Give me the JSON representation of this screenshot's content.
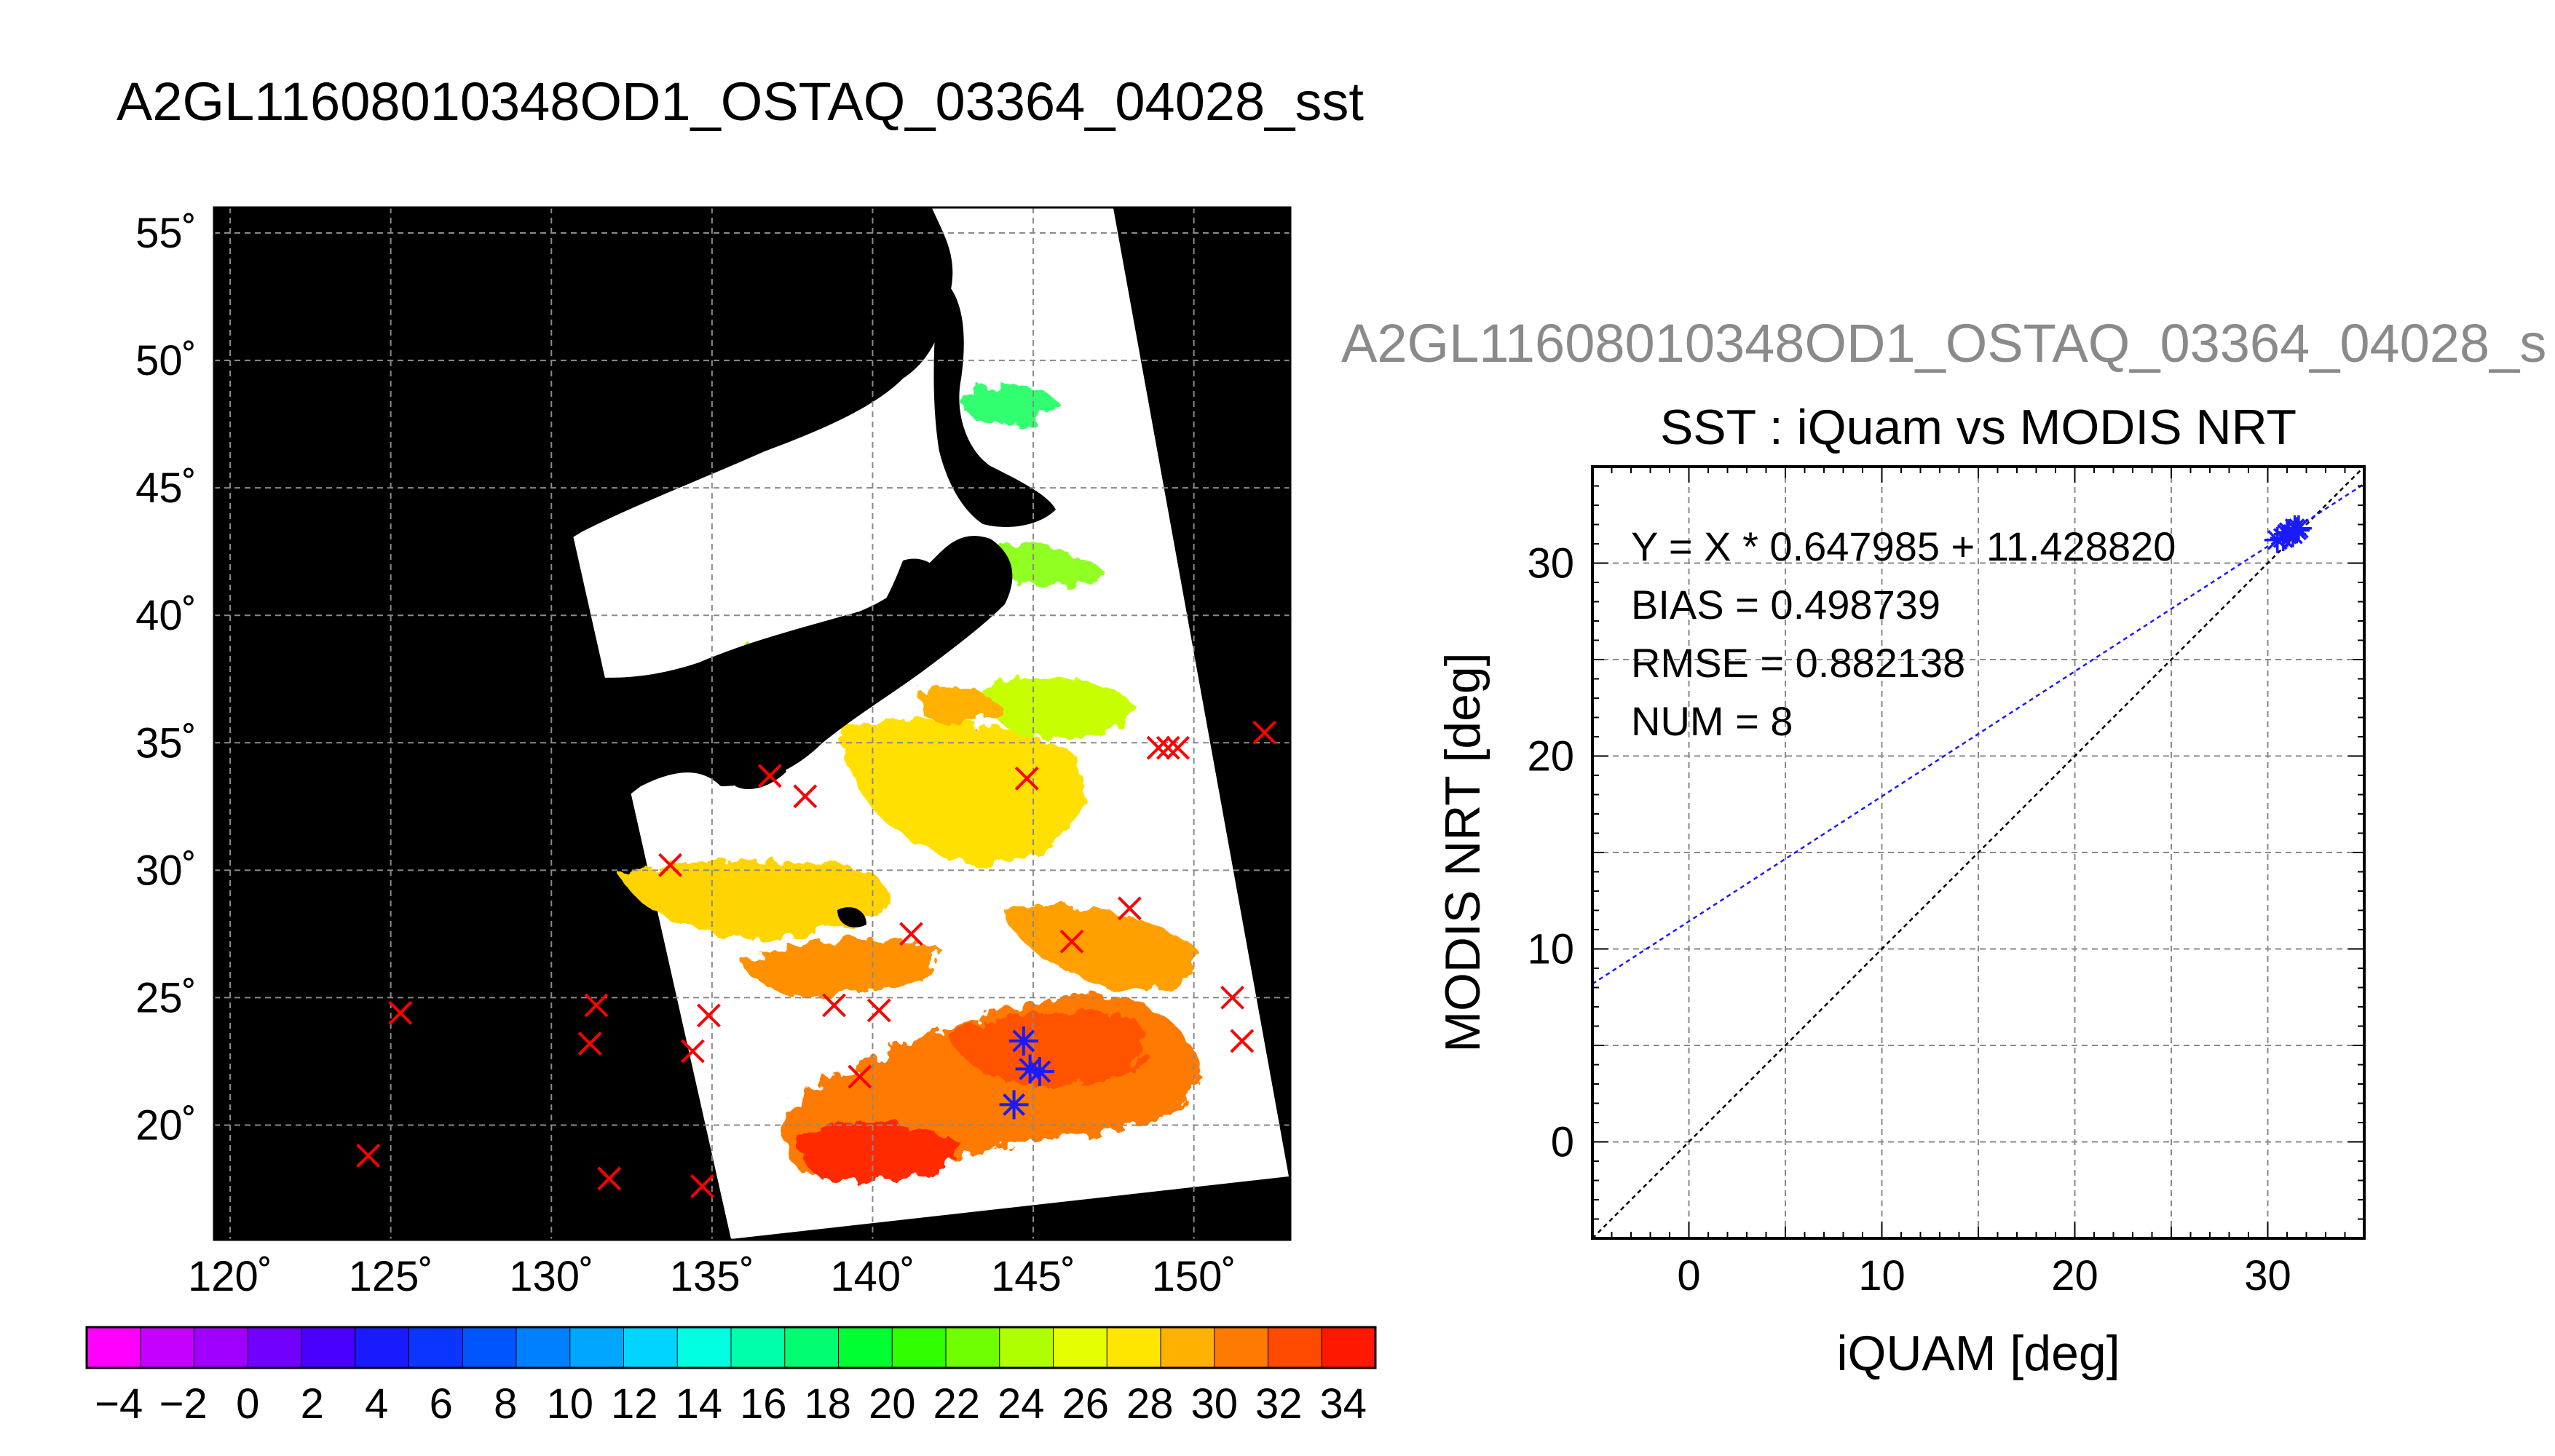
{
  "figure": {
    "main_title": "A2GL11608010348OD1_OSTAQ_03364_04028_sst",
    "secondary_title": "A2GL11608010348OD1_OSTAQ_03364_04028_s"
  },
  "colors": {
    "map_background": "#000000",
    "land": "#000000",
    "no_data": "#ffffff",
    "marker_all": "#ff0000",
    "marker_matched": "#1a1aff",
    "fit_line": "#1a1aff",
    "identity_line": "#000000"
  },
  "chart_data": [
    {
      "type": "map",
      "xlabel": "",
      "ylabel": "",
      "lon_ticks": [
        "120˚",
        "125˚",
        "130˚",
        "135˚",
        "140˚",
        "145˚",
        "150˚"
      ],
      "lat_ticks": [
        "55˚",
        "50˚",
        "45˚",
        "40˚",
        "35˚",
        "30˚",
        "25˚",
        "20˚"
      ],
      "lon_values": [
        120,
        125,
        130,
        135,
        140,
        145,
        150
      ],
      "lat_values": [
        55,
        50,
        45,
        40,
        35,
        30,
        25,
        20
      ],
      "xlim": [
        119.5,
        153.0
      ],
      "ylim": [
        15.5,
        56.0
      ],
      "grid": true,
      "series": [
        {
          "marker": "x",
          "points": [
            [
              124.3,
              18.8
            ],
            [
              125.3,
              24.4
            ],
            [
              131.2,
              23.2
            ],
            [
              131.4,
              24.7
            ],
            [
              131.8,
              17.9
            ],
            [
              133.7,
              30.2
            ],
            [
              134.4,
              22.9
            ],
            [
              134.7,
              17.6
            ],
            [
              134.9,
              24.3
            ],
            [
              136.8,
              33.7
            ],
            [
              137.9,
              32.9
            ],
            [
              138.8,
              24.7
            ],
            [
              139.6,
              21.9
            ],
            [
              140.2,
              24.5
            ],
            [
              141.2,
              27.5
            ],
            [
              144.8,
              33.6
            ],
            [
              146.2,
              27.2
            ],
            [
              148.0,
              28.5
            ],
            [
              148.9,
              34.8
            ],
            [
              149.2,
              34.8
            ],
            [
              149.5,
              34.8
            ],
            [
              151.2,
              25.0
            ],
            [
              151.5,
              23.3
            ],
            [
              152.2,
              35.4
            ]
          ]
        },
        {
          "marker": "star",
          "points": [
            [
              144.4,
              20.8
            ],
            [
              144.7,
              23.3
            ],
            [
              144.9,
              22.2
            ],
            [
              145.2,
              22.1
            ]
          ]
        }
      ]
    },
    {
      "type": "colorbar",
      "tick_labels": [
        "−4",
        "−2",
        "0",
        "2",
        "4",
        "6",
        "8",
        "10",
        "12",
        "14",
        "16",
        "18",
        "20",
        "22",
        "24",
        "26",
        "28",
        "30",
        "32",
        "34"
      ],
      "vmin": -5,
      "vmax": 35,
      "step": 2,
      "colors": [
        "#ff00ff",
        "#c400ff",
        "#a000ff",
        "#7200ff",
        "#4a00ff",
        "#1a1aff",
        "#0a36ff",
        "#0055ff",
        "#0080ff",
        "#00a6ff",
        "#00d4ff",
        "#00ffe0",
        "#00ffaa",
        "#00ff70",
        "#00ff30",
        "#30ff00",
        "#70ff00",
        "#b0ff00",
        "#e6ff00",
        "#ffe600",
        "#ffb000",
        "#ff7a00",
        "#ff4a00",
        "#ff1800"
      ]
    },
    {
      "type": "scatter",
      "title": "SST : iQuam vs MODIS NRT",
      "xlabel": "iQUAM [deg]",
      "ylabel": "MODIS NRT [deg]",
      "xlim": [
        -5,
        35
      ],
      "ylim": [
        -5,
        35
      ],
      "x_ticks": [
        "0",
        "10",
        "20",
        "30"
      ],
      "y_ticks": [
        "0",
        "10",
        "20",
        "30"
      ],
      "x_tick_values": [
        0,
        10,
        20,
        30
      ],
      "y_tick_values": [
        0,
        10,
        20,
        30
      ],
      "grid": true,
      "stats": [
        "Y = X * 0.647985 + 11.428820",
        "BIAS = 0.498739",
        "RMSE = 0.882138",
        "NUM = 8"
      ],
      "fit": {
        "slope": 0.647985,
        "intercept": 11.42882
      },
      "x": [
        30.5,
        30.8,
        31.0,
        31.1,
        31.3,
        31.4,
        31.5,
        31.6
      ],
      "y": [
        31.2,
        31.3,
        31.5,
        31.6,
        31.5,
        31.8,
        31.7,
        31.8
      ]
    }
  ]
}
